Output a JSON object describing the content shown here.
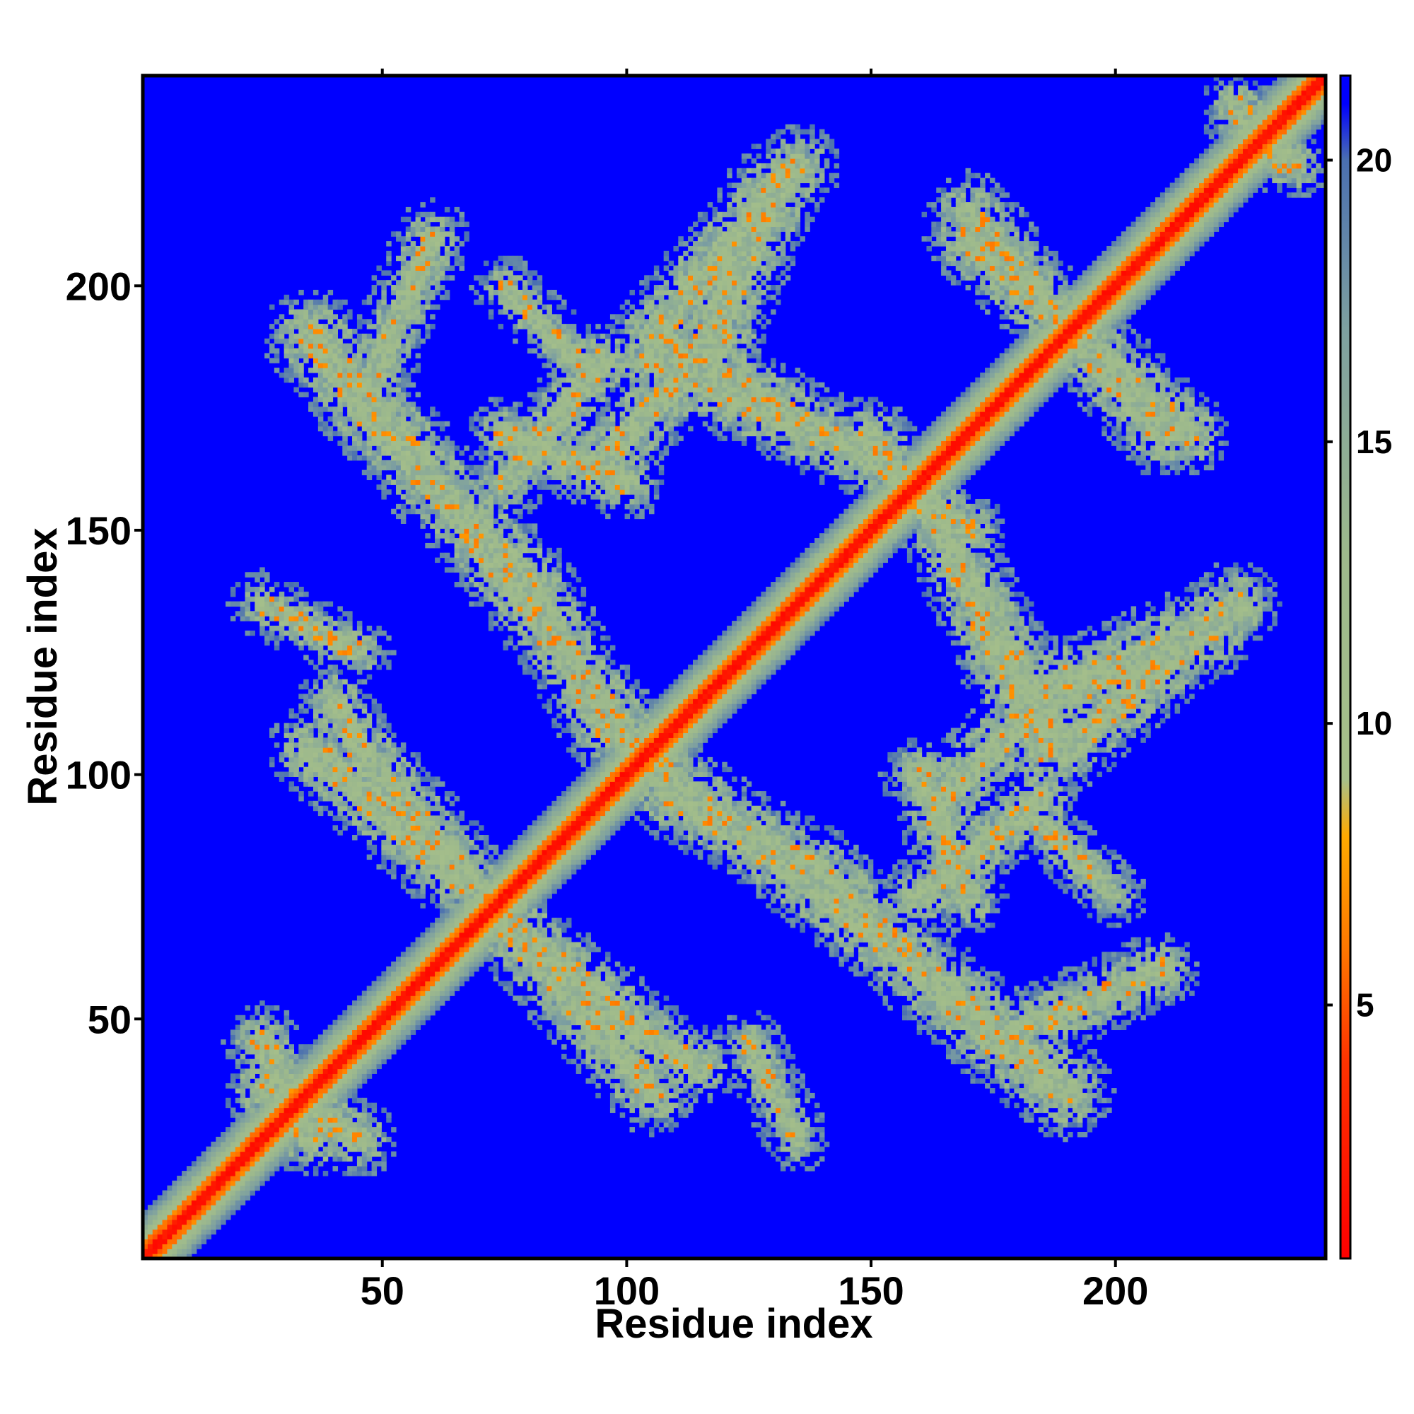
{
  "chart_data": {
    "type": "heatmap",
    "title": "",
    "xlabel": "Residue index",
    "ylabel": "Residue index",
    "xlim": [
      1,
      243
    ],
    "ylim": [
      1,
      243
    ],
    "x_ticks": [
      50,
      100,
      150,
      200
    ],
    "y_ticks": [
      50,
      100,
      150,
      200
    ],
    "colorbar": {
      "range": [
        0.5,
        21.5
      ],
      "ticks": [
        5,
        10,
        15,
        20
      ],
      "stops": [
        {
          "value": 0.5,
          "color": "#ff0000"
        },
        {
          "value": 4,
          "color": "#ff3300"
        },
        {
          "value": 6,
          "color": "#ff7700"
        },
        {
          "value": 8,
          "color": "#ffaa00"
        },
        {
          "value": 9,
          "color": "#a7c08a"
        },
        {
          "value": 13,
          "color": "#9db98c"
        },
        {
          "value": 17,
          "color": "#7ea0a0"
        },
        {
          "value": 20,
          "color": "#4a6fb0"
        },
        {
          "value": 21,
          "color": "#0000ff"
        }
      ]
    },
    "background_value": 21,
    "background_color": "#0000ff",
    "grid": false,
    "legend": "colorbar-right",
    "diagonal": {
      "from": 1,
      "to": 243,
      "core_value": 1,
      "halo_half_width": 9
    },
    "bands": [
      {
        "from": [
          35,
          190
        ],
        "to": [
          60,
          160
        ],
        "width": 7
      },
      {
        "from": [
          60,
          160
        ],
        "to": [
          110,
          95
        ],
        "width": 6
      },
      {
        "from": [
          110,
          95
        ],
        "to": [
          140,
          80
        ],
        "width": 6
      },
      {
        "from": [
          140,
          80
        ],
        "to": [
          175,
          45
        ],
        "width": 6
      },
      {
        "from": [
          35,
          105
        ],
        "to": [
          75,
          70
        ],
        "width": 6
      },
      {
        "from": [
          75,
          70
        ],
        "to": [
          105,
          45
        ],
        "width": 6
      },
      {
        "from": [
          105,
          45
        ],
        "to": [
          115,
          40
        ],
        "width": 5
      },
      {
        "from": [
          105,
          185
        ],
        "to": [
          150,
          165
        ],
        "width": 6
      },
      {
        "from": [
          75,
          170
        ],
        "to": [
          100,
          160
        ],
        "width": 5
      },
      {
        "from": [
          150,
          165
        ],
        "to": [
          170,
          150
        ],
        "width": 5
      },
      {
        "from": [
          170,
          210
        ],
        "to": [
          215,
          170
        ],
        "width": 6
      },
      {
        "from": [
          115,
          185
        ],
        "to": [
          130,
          220
        ],
        "width": 7
      },
      {
        "from": [
          95,
          165
        ],
        "to": [
          120,
          190
        ],
        "width": 6
      },
      {
        "from": [
          170,
          140
        ],
        "to": [
          190,
          105
        ],
        "width": 6
      },
      {
        "from": [
          190,
          105
        ],
        "to": [
          225,
          135
        ],
        "width": 6
      },
      {
        "from": [
          175,
          45
        ],
        "to": [
          210,
          60
        ],
        "width": 5
      },
      {
        "from": [
          160,
          75
        ],
        "to": [
          185,
          95
        ],
        "width": 5
      },
      {
        "from": [
          25,
          35
        ],
        "to": [
          45,
          25
        ],
        "width": 5
      },
      {
        "from": [
          225,
          235
        ],
        "to": [
          238,
          225
        ],
        "width": 4
      },
      {
        "from": [
          25,
          135
        ],
        "to": [
          45,
          125
        ],
        "width": 4
      },
      {
        "from": [
          185,
          90
        ],
        "to": [
          200,
          75
        ],
        "width": 4
      }
    ]
  }
}
